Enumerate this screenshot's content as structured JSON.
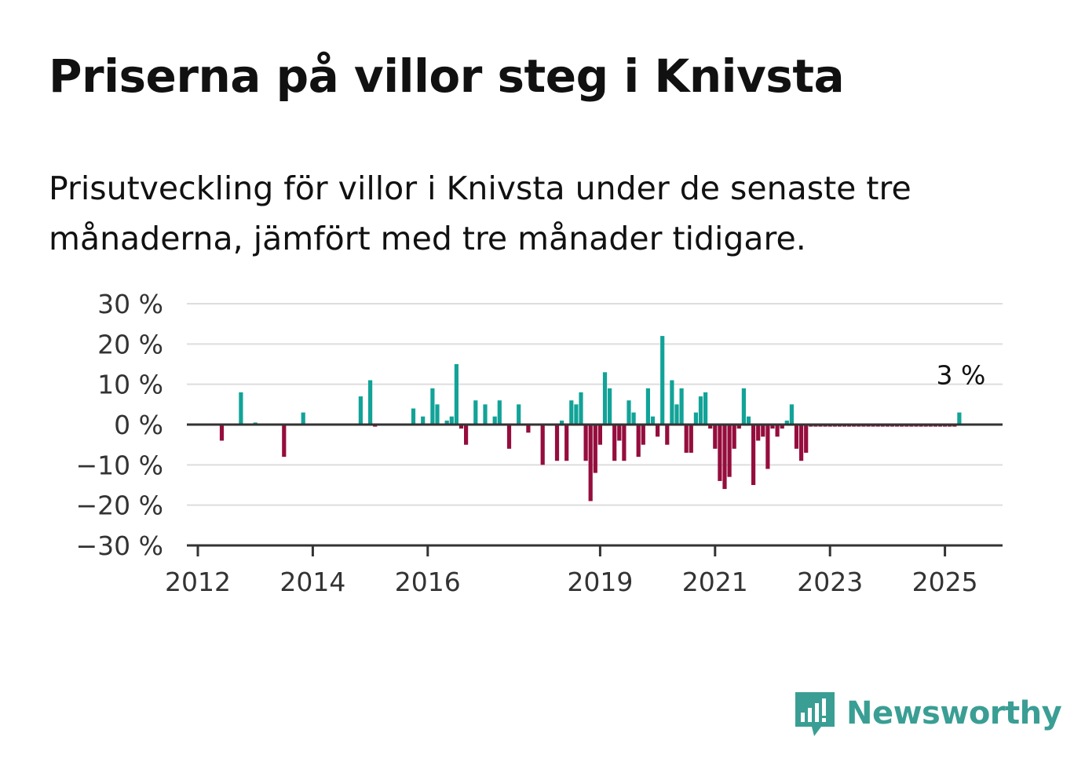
{
  "header": {
    "title": "Priserna på villor steg i Knivsta",
    "subtitle": "Prisutveckling för villor i Knivsta under de senaste tre månaderna, jämfört med tre månader tidigare."
  },
  "brand": {
    "name": "Newsworthy",
    "icon": "newsworthy-logo-icon",
    "color": "#3a9e94"
  },
  "chart_data": {
    "type": "bar",
    "x_type": "date",
    "xlim": [
      "2012-01",
      "2026-01"
    ],
    "ylim": [
      -30,
      30
    ],
    "yticks": [
      30,
      20,
      10,
      0,
      -10,
      -20,
      -30
    ],
    "ytick_labels": [
      "30 %",
      "20 %",
      "10 %",
      "0 %",
      "−10 %",
      "−20 %",
      "−30 %"
    ],
    "xticks": [
      "2012-01",
      "2014-01",
      "2016-01",
      "2019-01",
      "2021-01",
      "2023-01",
      "2025-01"
    ],
    "xtick_labels": [
      "2012",
      "2014",
      "2016",
      "2019",
      "2021",
      "2023",
      "2025"
    ],
    "grid": true,
    "colors": {
      "positive": "#12a398",
      "negative": "#950d3d"
    },
    "annotation": {
      "text": "3 %",
      "x": "2025-04",
      "y": 3
    },
    "x": [
      "2012-06",
      "2012-10",
      "2013-07",
      "2013-11",
      "2014-11",
      "2015-01",
      "2015-10",
      "2015-12",
      "2016-03",
      "2016-07",
      "2016-09",
      "2017-01",
      "2017-04",
      "2017-08",
      "2017-10",
      "2018-01",
      "2018-04",
      "2018-05",
      "2018-06",
      "2018-07",
      "2018-08",
      "2018-09",
      "2018-10",
      "2018-11",
      "2018-12",
      "2019-01",
      "2019-02",
      "2019-03",
      "2019-04",
      "2019-05",
      "2019-06",
      "2019-07",
      "2019-08",
      "2019-09",
      "2019-10",
      "2019-11",
      "2019-12",
      "2020-01",
      "2020-02",
      "2020-03",
      "2020-04",
      "2020-05",
      "2020-06",
      "2020-07",
      "2020-08",
      "2020-09",
      "2020-10",
      "2020-11",
      "2020-12",
      "2021-01",
      "2021-02",
      "2021-03",
      "2021-04",
      "2021-05",
      "2021-06",
      "2021-07",
      "2021-08",
      "2021-09",
      "2021-10",
      "2021-11",
      "2021-12",
      "2022-01",
      "2022-02",
      "2022-03",
      "2022-04",
      "2022-05",
      "2022-06",
      "2022-07",
      "2022-08",
      "2022-09",
      "2022-10",
      "2022-11",
      "2022-12",
      "2023-01",
      "2023-02",
      "2023-03",
      "2023-04",
      "2023-05",
      "2023-06",
      "2023-07",
      "2023-08",
      "2023-09",
      "2023-10",
      "2023-11",
      "2023-12",
      "2024-01",
      "2024-02",
      "2024-03",
      "2024-04",
      "2024-05",
      "2024-06",
      "2024-07",
      "2024-08",
      "2024-09",
      "2024-10",
      "2024-11",
      "2024-12",
      "2025-01",
      "2025-02",
      "2025-03",
      "2025-04",
      "2013-01",
      "2015-02",
      "2016-02",
      "2016-05",
      "2016-06",
      "2016-08",
      "2016-11",
      "2017-03",
      "2017-06"
    ],
    "values": [
      -4,
      8,
      -8,
      3,
      7,
      11,
      4,
      2,
      5,
      15,
      -5,
      5,
      6,
      5,
      -2,
      -10,
      -9,
      1,
      -9,
      6,
      5,
      8,
      -9,
      -19,
      -12,
      -5,
      13,
      9,
      -9,
      -4,
      -9,
      6,
      3,
      -8,
      -5,
      9,
      2,
      -3,
      22,
      -5,
      11,
      5,
      9,
      -7,
      -7,
      3,
      7,
      8,
      -1,
      -6,
      -14,
      -16,
      -13,
      -6,
      -1,
      9,
      2,
      -15,
      -4,
      -3,
      -11,
      -1,
      -3,
      -1,
      1,
      5,
      -6,
      -9,
      -7,
      -0.5,
      -0.5,
      -0.5,
      -0.5,
      -0.5,
      -0.5,
      -0.5,
      -0.5,
      -0.5,
      -0.5,
      -0.5,
      -0.5,
      -0.5,
      -0.5,
      -0.5,
      -0.5,
      -0.5,
      -0.5,
      -0.5,
      -0.5,
      -0.5,
      -0.5,
      -0.5,
      -0.5,
      -0.5,
      -0.5,
      -0.5,
      -0.5,
      -0.5,
      -0.5,
      -0.5,
      3,
      0.5,
      -0.5,
      9,
      1,
      2,
      -1,
      6,
      2,
      -6
    ]
  }
}
